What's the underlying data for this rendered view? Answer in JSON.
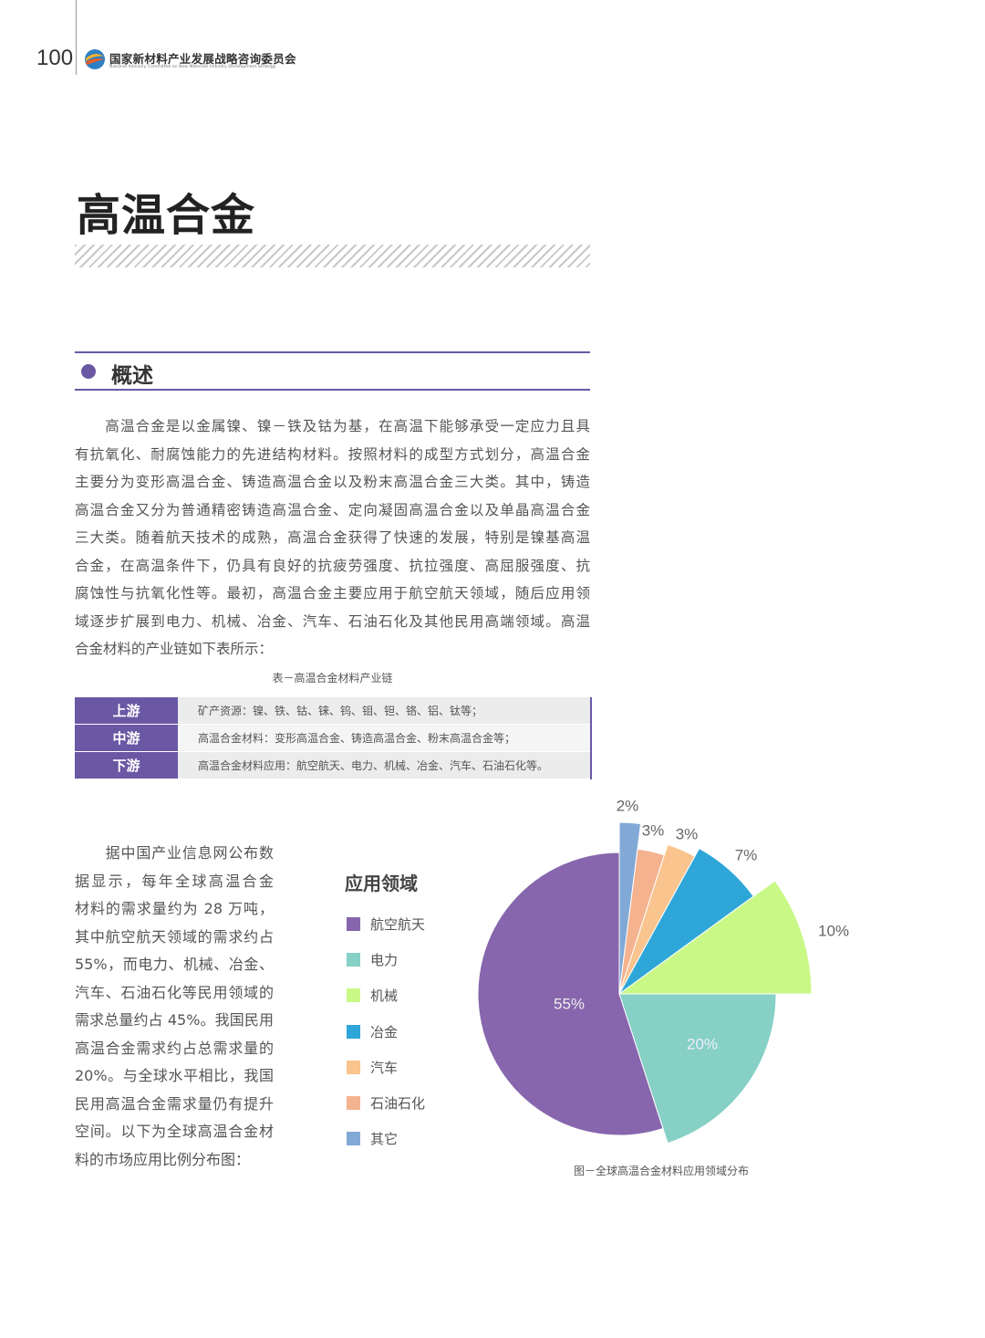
{
  "header": {
    "page_number": "100",
    "org_name_cn": "国家新材料产业发展战略咨询委员会",
    "org_name_en": "National Advisory Committee on New Materials Industry Development Strategy"
  },
  "title": "高温合金",
  "section": {
    "title": "概述"
  },
  "intro_lines": [
    "　　高温合金是以金属镍、镍－铁及钴为基，在高温下能够承受一定应力且具",
    "有抗氧化、耐腐蚀能力的先进结构材料。按照材料的成型方式划分，高温合金",
    "主要分为变形高温合金、铸造高温合金以及粉末高温合金三大类。其中，铸造",
    "高温合金又分为普通精密铸造高温合金、定向凝固高温合金以及单晶高温合金",
    "三大类。随着航天技术的成熟，高温合金获得了快速的发展，特别是镍基高温",
    "合金，在高温条件下，仍具有良好的抗疲劳强度、抗拉强度、高屈服强度、抗",
    "腐蚀性与抗氧化性等。最初，高温合金主要应用于航空航天领域，随后应用领",
    "域逐步扩展到电力、机械、冶金、汽车、石油石化及其他民用高端领域。高温",
    "合金材料的产业链如下表所示："
  ],
  "table": {
    "caption": "表－高温合金材料产业链",
    "rows": [
      {
        "stage": "上游",
        "content": "矿产资源：镍、铁、钴、铼、钨、钼、钽、铬、铝、钛等；"
      },
      {
        "stage": "中游",
        "content": "高温合金材料：变形高温合金、铸造高温合金、粉末高温合金等；"
      },
      {
        "stage": "下游",
        "content": "高温合金材料应用：航空航天、电力、机械、冶金、汽车、石油石化等。"
      }
    ]
  },
  "market_lines": [
    "　　据中国产业信息网公布数",
    "据显示，每年全球高温合金",
    "材料的需求量约为 28 万吨，",
    "其中航空航天领域的需求约占",
    "55%，而电力、机械、冶金、",
    "汽车、石油石化等民用领域的",
    "需求总量约占 45%。我国民用",
    "高温合金需求约占总需求量的",
    "20%。与全球水平相比，我国",
    "民用高温合金需求量仍有提升",
    "空间。以下为全球高温合金材",
    "料的市场应用比例分布图："
  ],
  "chart_data": {
    "type": "pie",
    "legend_title": "应用领域",
    "legend_position": "left",
    "caption": "图－全球高温合金材料应用领域分布",
    "slices": [
      {
        "name": "航空航天",
        "value": 55,
        "label": "55%",
        "color": "#8766ad"
      },
      {
        "name": "电力",
        "value": 20,
        "label": "20%",
        "color": "#86d0c6"
      },
      {
        "name": "机械",
        "value": 10,
        "label": "10%",
        "color": "#c9f887"
      },
      {
        "name": "冶金",
        "value": 7,
        "label": "7%",
        "color": "#2fa6d8"
      },
      {
        "name": "汽车",
        "value": 3,
        "label": "3%",
        "color": "#f9c48d"
      },
      {
        "name": "石油石化",
        "value": 3,
        "label": "3%",
        "color": "#f4b28f"
      },
      {
        "name": "其它",
        "value": 2,
        "label": "2%",
        "color": "#82a9d6"
      }
    ]
  }
}
